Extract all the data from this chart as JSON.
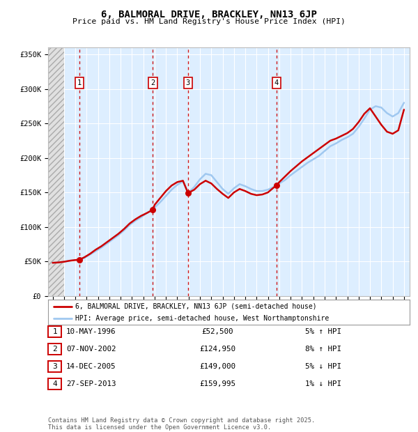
{
  "title": "6, BALMORAL DRIVE, BRACKLEY, NN13 6JP",
  "subtitle": "Price paid vs. HM Land Registry's House Price Index (HPI)",
  "transactions": [
    {
      "num": 1,
      "year": 1996.36,
      "price": 52500,
      "date": "10-MAY-1996",
      "pct": "5%",
      "dir": "↑"
    },
    {
      "num": 2,
      "year": 2002.85,
      "price": 124950,
      "date": "07-NOV-2002",
      "pct": "8%",
      "dir": "↑"
    },
    {
      "num": 3,
      "year": 2005.95,
      "price": 149000,
      "date": "14-DEC-2005",
      "pct": "5%",
      "dir": "↓"
    },
    {
      "num": 4,
      "year": 2013.74,
      "price": 159995,
      "date": "27-SEP-2013",
      "pct": "1%",
      "dir": "↓"
    }
  ],
  "hpi_color": "#a0c8f0",
  "price_color": "#cc0000",
  "marker_color": "#cc0000",
  "dash_color": "#cc0000",
  "bg_color": "#ffffff",
  "plot_bg": "#ddeeff",
  "grid_color": "#ffffff",
  "legend_red": "6, BALMORAL DRIVE, BRACKLEY, NN13 6JP (semi-detached house)",
  "legend_blue": "HPI: Average price, semi-detached house, West Northamptonshire",
  "footnote": "Contains HM Land Registry data © Crown copyright and database right 2025.\nThis data is licensed under the Open Government Licence v3.0.",
  "xmin": 1993.6,
  "xmax": 2025.5,
  "ymin": 0,
  "ymax": 360000,
  "yticks": [
    0,
    50000,
    100000,
    150000,
    200000,
    250000,
    300000,
    350000
  ],
  "hatch_end": 1995.0,
  "price_x": [
    1994.0,
    1994.5,
    1995.0,
    1995.5,
    1996.0,
    1996.36,
    1996.8,
    1997.3,
    1997.8,
    1998.3,
    1998.8,
    1999.3,
    1999.8,
    2000.3,
    2000.8,
    2001.3,
    2001.8,
    2002.3,
    2002.85,
    2003.0,
    2003.5,
    2004.0,
    2004.5,
    2005.0,
    2005.5,
    2005.95,
    2006.5,
    2007.0,
    2007.5,
    2008.0,
    2008.5,
    2009.0,
    2009.5,
    2010.0,
    2010.5,
    2011.0,
    2011.5,
    2012.0,
    2012.5,
    2013.0,
    2013.5,
    2013.74,
    2014.0,
    2014.5,
    2015.0,
    2015.5,
    2016.0,
    2016.5,
    2017.0,
    2017.5,
    2018.0,
    2018.5,
    2019.0,
    2019.5,
    2020.0,
    2020.5,
    2021.0,
    2021.5,
    2022.0,
    2022.5,
    2023.0,
    2023.5,
    2024.0,
    2024.5,
    2025.0
  ],
  "price_y": [
    48000,
    48500,
    49500,
    51000,
    52000,
    52500,
    56000,
    61000,
    67000,
    72000,
    78000,
    84000,
    90000,
    97000,
    105000,
    111000,
    116000,
    120000,
    124950,
    132000,
    142000,
    152000,
    160000,
    165000,
    167000,
    149000,
    154000,
    162000,
    167000,
    163000,
    155000,
    148000,
    142000,
    150000,
    155000,
    152000,
    148000,
    146000,
    147000,
    150000,
    157000,
    159995,
    165000,
    173000,
    181000,
    188000,
    195000,
    201000,
    207000,
    213000,
    219000,
    225000,
    228000,
    232000,
    236000,
    242000,
    252000,
    264000,
    272000,
    260000,
    248000,
    238000,
    235000,
    240000,
    270000
  ],
  "hpi_x": [
    1994.0,
    1994.5,
    1995.0,
    1995.5,
    1996.0,
    1996.36,
    1996.8,
    1997.3,
    1997.8,
    1998.3,
    1998.8,
    1999.3,
    1999.8,
    2000.3,
    2000.8,
    2001.3,
    2001.8,
    2002.3,
    2002.85,
    2003.0,
    2003.5,
    2004.0,
    2004.5,
    2005.0,
    2005.5,
    2005.95,
    2006.5,
    2007.0,
    2007.5,
    2008.0,
    2008.5,
    2009.0,
    2009.5,
    2010.0,
    2010.5,
    2011.0,
    2011.5,
    2012.0,
    2012.5,
    2013.0,
    2013.5,
    2013.74,
    2014.0,
    2014.5,
    2015.0,
    2015.5,
    2016.0,
    2016.5,
    2017.0,
    2017.5,
    2018.0,
    2018.5,
    2019.0,
    2019.5,
    2020.0,
    2020.5,
    2021.0,
    2021.5,
    2022.0,
    2022.5,
    2023.0,
    2023.5,
    2024.0,
    2024.5,
    2025.0
  ],
  "hpi_y": [
    48000,
    48500,
    49500,
    51000,
    52000,
    52500,
    55000,
    60000,
    65000,
    70000,
    76000,
    82000,
    88000,
    95000,
    103000,
    109000,
    114000,
    120000,
    124950,
    128000,
    136000,
    145000,
    154000,
    161000,
    166000,
    149000,
    158000,
    169000,
    177000,
    175000,
    165000,
    155000,
    148000,
    156000,
    162000,
    159000,
    155000,
    152000,
    152000,
    154000,
    158000,
    159995,
    163000,
    168000,
    175000,
    181000,
    187000,
    193000,
    198000,
    203000,
    210000,
    217000,
    221000,
    226000,
    230000,
    235000,
    245000,
    257000,
    270000,
    275000,
    273000,
    265000,
    260000,
    265000,
    280000
  ]
}
